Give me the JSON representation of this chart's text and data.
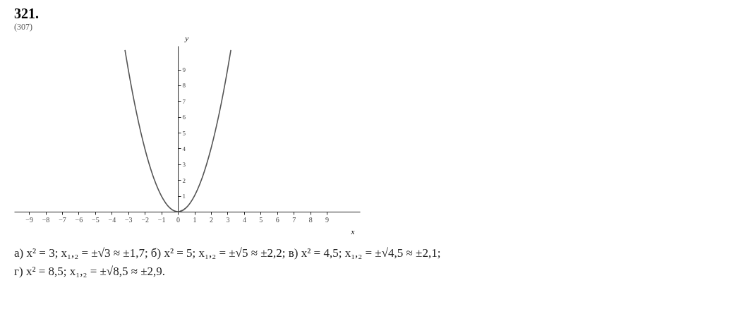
{
  "chart_data": {
    "type": "line",
    "title": "321.",
    "subtitle": "(307)",
    "xlabel": "x",
    "ylabel": "y",
    "series": [
      {
        "color": "#555555",
        "x": [
          -3.2,
          -3,
          -2.5,
          -2,
          -1.5,
          -1,
          -0.5,
          0,
          0.5,
          1,
          1.5,
          2,
          2.5,
          3,
          3.2
        ],
        "values": [
          10.24,
          9,
          6.25,
          4,
          2.25,
          1,
          0.25,
          0,
          0.25,
          1,
          2.25,
          4,
          6.25,
          9,
          10.24
        ]
      }
    ],
    "xlim": [
      -9.9,
      11
    ],
    "ylim": [
      0,
      10.5
    ],
    "xticks": [
      -9,
      -8,
      -7,
      -6,
      -5,
      -4,
      -3,
      -2,
      -1,
      0,
      1,
      2,
      3,
      4,
      5,
      6,
      7,
      8,
      9
    ],
    "yticks": [
      1,
      2,
      3,
      4,
      5,
      6,
      7,
      8,
      9
    ],
    "grid": false,
    "annotations": [
      "а) x² = 3;  x₁,₂ = ±√3 ≈ ±1,7;  б) x² = 5;  x₁,₂ = ±√5 ≈ ±2,2;  в) x² = 4,5;  x₁,₂ = ±√4,5 ≈ ±2,1;",
      "г) x² = 8,5;  x₁,₂ = ±√8,5 ≈ ±2,9."
    ]
  }
}
